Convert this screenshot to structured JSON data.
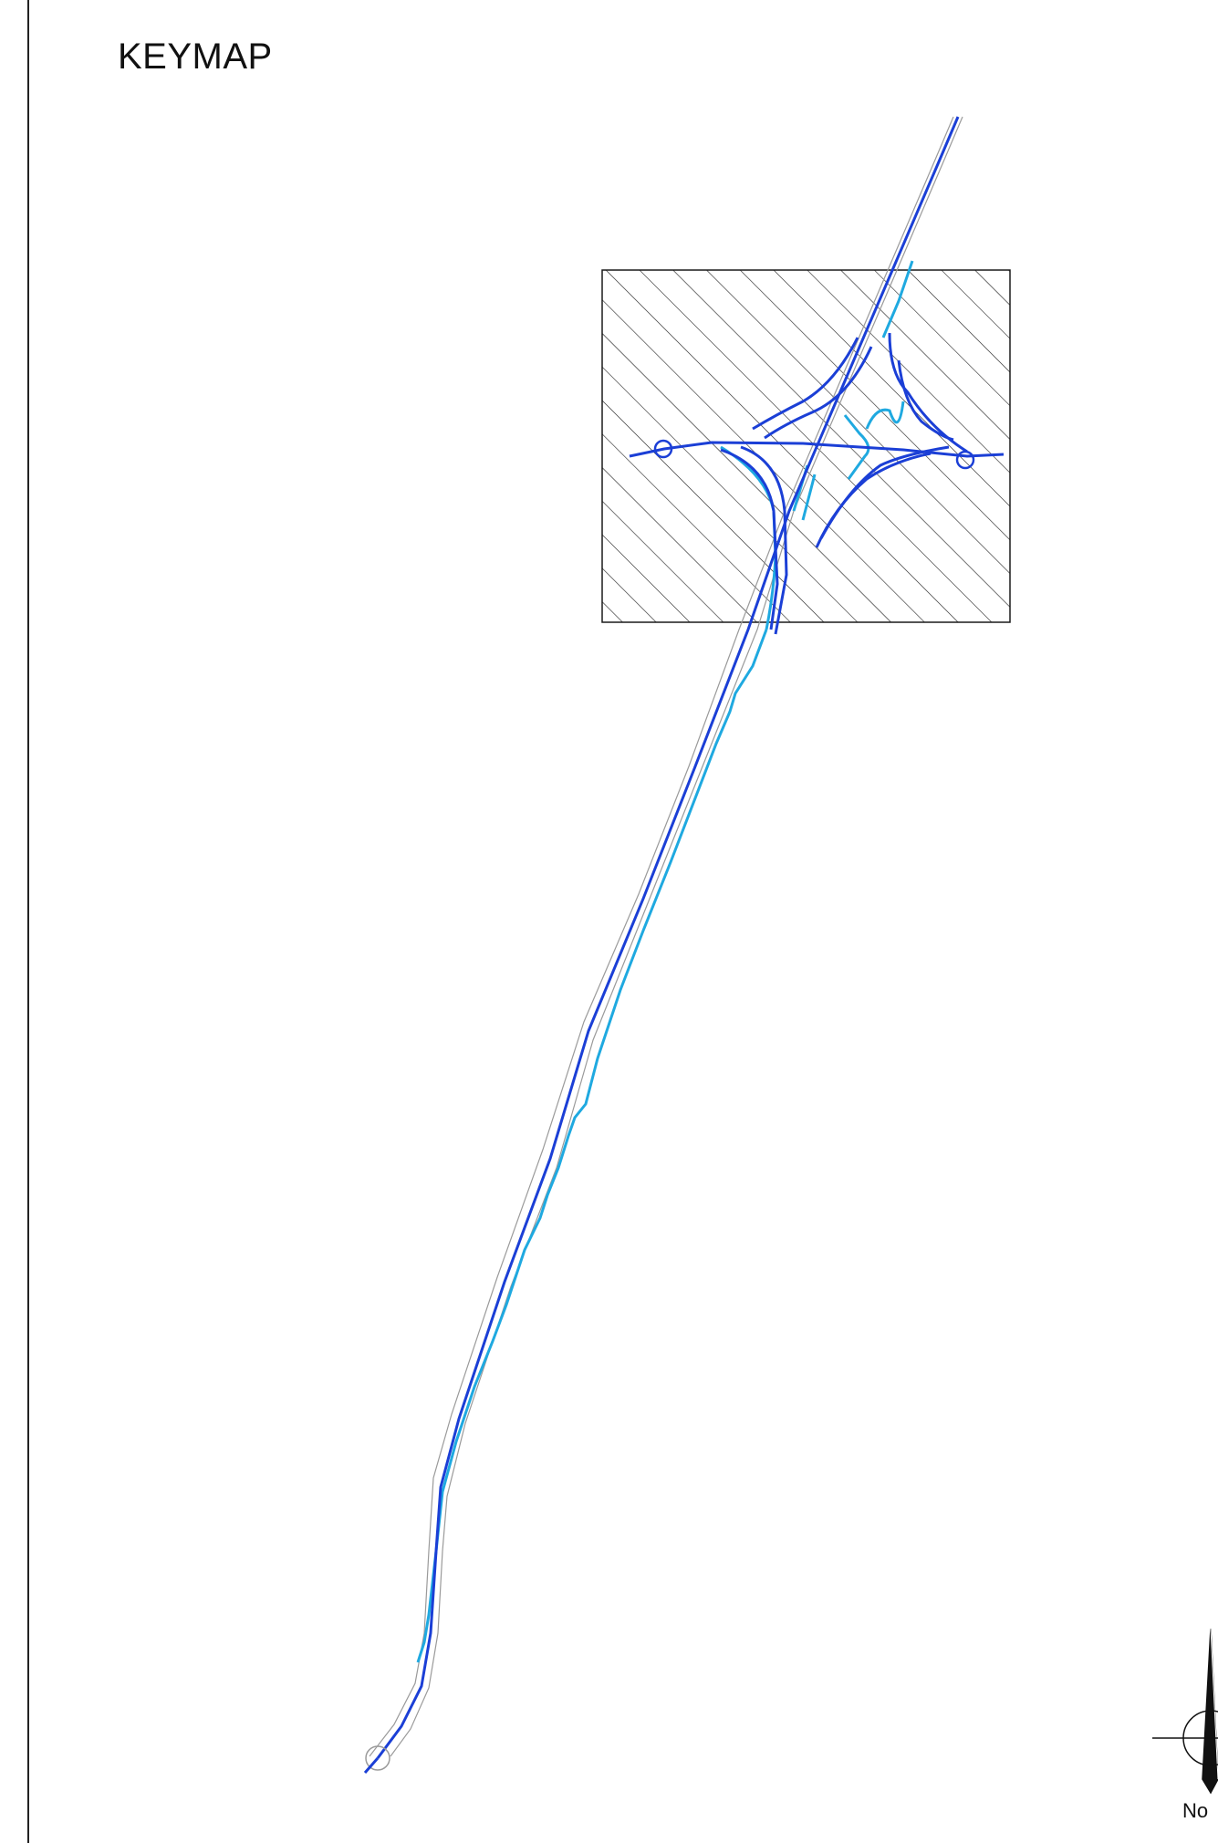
{
  "title": "KEYMAP",
  "north_arrow": {
    "label": "No",
    "icon": "north-arrow-icon"
  },
  "colors": {
    "mainline": "#1b3fd6",
    "ramp_light": "#1fa9e0",
    "edge_line": "#9a9a9a",
    "hatch": "#1a1a1a",
    "border": "#222222"
  }
}
